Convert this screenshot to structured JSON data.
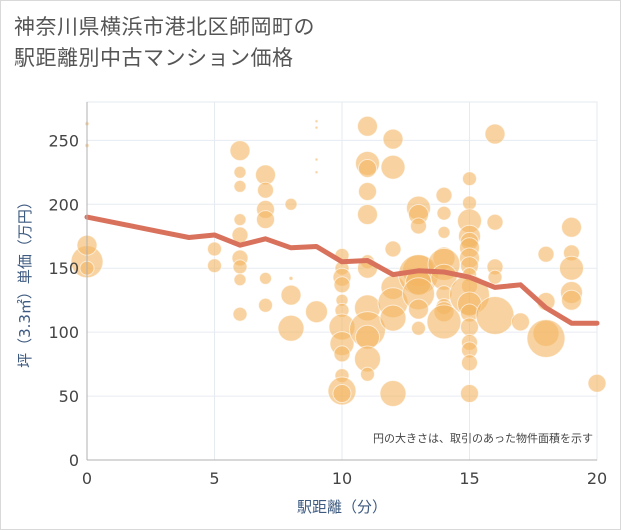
{
  "title_lines": [
    "神奈川県横浜市港北区師岡町の",
    "駅距離別中古マンション価格"
  ],
  "note": "円の大きさは、取引のあった物件面積を示す",
  "colors": {
    "bubble": "#f3b562",
    "line": "#d9725c",
    "grid": "#e6ebf2",
    "axis": "#b0b0b0",
    "background": "#ffffff"
  },
  "chart_data": {
    "type": "scatter",
    "xlabel": "駅距離（分）",
    "ylabel": "坪（3.3㎡）単価（万円）",
    "xlim": [
      0,
      20
    ],
    "ylim": [
      0,
      280
    ],
    "x_ticks": [
      "0",
      "5",
      "10",
      "15",
      "20"
    ],
    "y_ticks": [
      "0",
      "50",
      "100",
      "150",
      "200",
      "250"
    ],
    "x_tick_values": [
      0,
      5,
      10,
      15,
      20
    ],
    "y_tick_values": [
      0,
      50,
      100,
      150,
      200,
      250
    ],
    "average_line": [
      [
        0,
        190
      ],
      [
        1,
        186
      ],
      [
        2,
        182
      ],
      [
        3,
        178
      ],
      [
        4,
        174
      ],
      [
        5,
        176
      ],
      [
        6,
        168
      ],
      [
        7,
        173
      ],
      [
        8,
        166
      ],
      [
        9,
        167
      ],
      [
        10,
        155
      ],
      [
        11,
        156
      ],
      [
        12,
        145
      ],
      [
        13,
        148
      ],
      [
        14,
        147
      ],
      [
        15,
        143
      ],
      [
        16,
        135
      ],
      [
        17,
        137
      ],
      [
        18,
        119
      ],
      [
        19,
        107
      ],
      [
        20,
        107
      ]
    ],
    "bubbles": [
      [
        0,
        155,
        16
      ],
      [
        0,
        168,
        10
      ],
      [
        0,
        150,
        7
      ],
      [
        0,
        263,
        2
      ],
      [
        0,
        246,
        2
      ],
      [
        5,
        165,
        7
      ],
      [
        5,
        152,
        7
      ],
      [
        6,
        242,
        10
      ],
      [
        6,
        225,
        6
      ],
      [
        6,
        214,
        6
      ],
      [
        6,
        188,
        6
      ],
      [
        6,
        176,
        8
      ],
      [
        6,
        158,
        8
      ],
      [
        6,
        151,
        7
      ],
      [
        6,
        141,
        6
      ],
      [
        6,
        114,
        7
      ],
      [
        7,
        223,
        10
      ],
      [
        7,
        211,
        8
      ],
      [
        7,
        196,
        9
      ],
      [
        7,
        188,
        9
      ],
      [
        7,
        142,
        6
      ],
      [
        7,
        121,
        7
      ],
      [
        8,
        200,
        6
      ],
      [
        8,
        142,
        2
      ],
      [
        8,
        129,
        10
      ],
      [
        8,
        103,
        13
      ],
      [
        9,
        265,
        1.5
      ],
      [
        9,
        260,
        1.5
      ],
      [
        9,
        235,
        1.5
      ],
      [
        9,
        225,
        1.5
      ],
      [
        9,
        116,
        11
      ],
      [
        10,
        160,
        7
      ],
      [
        10,
        150,
        7
      ],
      [
        10,
        143,
        9
      ],
      [
        10,
        137,
        8
      ],
      [
        10,
        125,
        6
      ],
      [
        10,
        117,
        7
      ],
      [
        10,
        104,
        13
      ],
      [
        10,
        91,
        12
      ],
      [
        10,
        83,
        8
      ],
      [
        10,
        66,
        7
      ],
      [
        10,
        54,
        14
      ],
      [
        10,
        52,
        9
      ],
      [
        11,
        261,
        10
      ],
      [
        11,
        232,
        12
      ],
      [
        11,
        228,
        9
      ],
      [
        11,
        210,
        9
      ],
      [
        11,
        192,
        10
      ],
      [
        11,
        155,
        7
      ],
      [
        11,
        150,
        10
      ],
      [
        11,
        119,
        13
      ],
      [
        11,
        102,
        18
      ],
      [
        11,
        96,
        12
      ],
      [
        11,
        79,
        13
      ],
      [
        11,
        67,
        7
      ],
      [
        12,
        251,
        10
      ],
      [
        12,
        229,
        12
      ],
      [
        12,
        165,
        8
      ],
      [
        12,
        135,
        12
      ],
      [
        12,
        123,
        15
      ],
      [
        12,
        111,
        13
      ],
      [
        12,
        52,
        13
      ],
      [
        13,
        197,
        12
      ],
      [
        13,
        192,
        10
      ],
      [
        13,
        183,
        8
      ],
      [
        13,
        148,
        16
      ],
      [
        13,
        145,
        20
      ],
      [
        13,
        139,
        13
      ],
      [
        13,
        130,
        16
      ],
      [
        13,
        118,
        10
      ],
      [
        13,
        103,
        7
      ],
      [
        14,
        207,
        8
      ],
      [
        14,
        193,
        7
      ],
      [
        14,
        178,
        6
      ],
      [
        14,
        158,
        11
      ],
      [
        14,
        153,
        16
      ],
      [
        14,
        143,
        13
      ],
      [
        14,
        130,
        8
      ],
      [
        14,
        120,
        8
      ],
      [
        14,
        116,
        10
      ],
      [
        14,
        108,
        17
      ],
      [
        15,
        220,
        7
      ],
      [
        15,
        201,
        7
      ],
      [
        15,
        187,
        12
      ],
      [
        15,
        175,
        11
      ],
      [
        15,
        171,
        9
      ],
      [
        15,
        166,
        10
      ],
      [
        15,
        158,
        10
      ],
      [
        15,
        152,
        9
      ],
      [
        15,
        145,
        7
      ],
      [
        15,
        136,
        8
      ],
      [
        15,
        129,
        20
      ],
      [
        15,
        122,
        12
      ],
      [
        15,
        115,
        9
      ],
      [
        15,
        104,
        9
      ],
      [
        15,
        92,
        8
      ],
      [
        15,
        86,
        8
      ],
      [
        15,
        76,
        8
      ],
      [
        15,
        52,
        9
      ],
      [
        16,
        255,
        10
      ],
      [
        16,
        186,
        8
      ],
      [
        16,
        151,
        8
      ],
      [
        16,
        143,
        7
      ],
      [
        16,
        113,
        19
      ],
      [
        17,
        108,
        9
      ],
      [
        18,
        161,
        8
      ],
      [
        18,
        124,
        9
      ],
      [
        18,
        99,
        13
      ],
      [
        18,
        95,
        19
      ],
      [
        19,
        182,
        10
      ],
      [
        19,
        162,
        8
      ],
      [
        19,
        150,
        12
      ],
      [
        19,
        131,
        11
      ],
      [
        19,
        125,
        10
      ],
      [
        20,
        60,
        9
      ]
    ]
  }
}
